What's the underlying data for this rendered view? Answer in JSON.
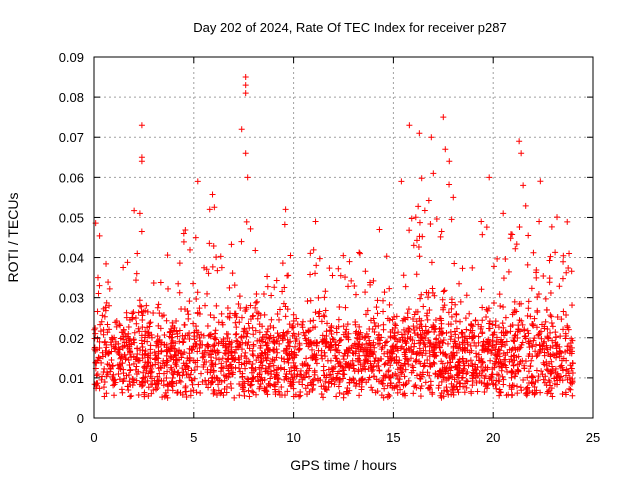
{
  "chart_data": {
    "type": "scatter",
    "title": "Day 202 of 2024, Rate Of TEC Index for receiver p287",
    "xlabel": "GPS time / hours",
    "ylabel": "ROTI / TECUs",
    "xlim": [
      0,
      25
    ],
    "ylim": [
      0,
      0.09
    ],
    "xticks": [
      0,
      5,
      10,
      15,
      20,
      25
    ],
    "yticks": [
      0,
      0.01,
      0.02,
      0.03,
      0.04,
      0.05,
      0.06,
      0.07,
      0.08,
      0.09
    ],
    "xtick_labels": [
      "0",
      "5",
      "10",
      "15",
      "20",
      "25"
    ],
    "ytick_labels": [
      "0",
      "0.01",
      "0.02",
      "0.03",
      "0.04",
      "0.05",
      "0.06",
      "0.07",
      "0.08",
      "0.09"
    ],
    "grid": true,
    "marker": "+",
    "color": "#ff0000",
    "series": [
      {
        "name": "ROTI",
        "x_range": [
          0,
          24
        ],
        "baseline_min": 0.005,
        "baseline_max": 0.02,
        "notable_points": [
          {
            "x": 0.2,
            "y": 0.035
          },
          {
            "x": 2.4,
            "y": 0.073
          },
          {
            "x": 2.4,
            "y": 0.065
          },
          {
            "x": 2.4,
            "y": 0.064
          },
          {
            "x": 2.3,
            "y": 0.051
          },
          {
            "x": 4.5,
            "y": 0.046
          },
          {
            "x": 5.2,
            "y": 0.059
          },
          {
            "x": 5.8,
            "y": 0.052
          },
          {
            "x": 7.4,
            "y": 0.072
          },
          {
            "x": 7.6,
            "y": 0.085
          },
          {
            "x": 7.6,
            "y": 0.083
          },
          {
            "x": 7.6,
            "y": 0.081
          },
          {
            "x": 7.6,
            "y": 0.066
          },
          {
            "x": 7.7,
            "y": 0.06
          },
          {
            "x": 9.6,
            "y": 0.052
          },
          {
            "x": 11.1,
            "y": 0.049
          },
          {
            "x": 12.8,
            "y": 0.039
          },
          {
            "x": 14.3,
            "y": 0.047
          },
          {
            "x": 15.4,
            "y": 0.059
          },
          {
            "x": 15.8,
            "y": 0.073
          },
          {
            "x": 16.3,
            "y": 0.071
          },
          {
            "x": 16.9,
            "y": 0.07
          },
          {
            "x": 17.0,
            "y": 0.061
          },
          {
            "x": 17.5,
            "y": 0.075
          },
          {
            "x": 17.6,
            "y": 0.067
          },
          {
            "x": 17.8,
            "y": 0.064
          },
          {
            "x": 18.0,
            "y": 0.055
          },
          {
            "x": 19.4,
            "y": 0.049
          },
          {
            "x": 19.8,
            "y": 0.06
          },
          {
            "x": 20.5,
            "y": 0.051
          },
          {
            "x": 21.3,
            "y": 0.069
          },
          {
            "x": 21.4,
            "y": 0.066
          },
          {
            "x": 21.5,
            "y": 0.058
          },
          {
            "x": 22.3,
            "y": 0.049
          },
          {
            "x": 23.8,
            "y": 0.041
          }
        ]
      }
    ]
  }
}
